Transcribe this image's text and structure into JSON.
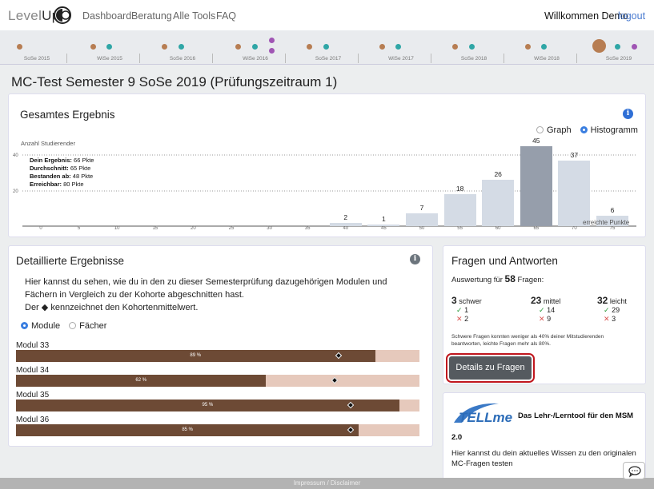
{
  "navbar": {
    "brand_light": "Level",
    "brand_dark": "Up",
    "links": [
      "Dashboard",
      "Beratung",
      "Alle Tools",
      "FAQ"
    ],
    "welcome": "Willkommen Demo",
    "logout": "logout"
  },
  "timeline": {
    "semesters": [
      "SoSe 2015",
      "WiSe 2015",
      "SoSe 2016",
      "WiSe 2016",
      "SoSe 2017",
      "WiSe 2017",
      "SoSe 2018",
      "WiSe 2018",
      "SoSe 2019"
    ]
  },
  "page_title": "MC-Test Semester 9 SoSe 2019 (Prüfungszeitraum 1)",
  "result_card": {
    "title": "Gesamtes Ergebnis",
    "view_graph": "Graph",
    "view_histogram": "Histogramm",
    "y_axis_label": "Anzahl Studierender",
    "x_axis_label": "erreichte Punkte",
    "stats": [
      {
        "label": "Dein Ergebnis:",
        "value": "66 Pkte"
      },
      {
        "label": "Durchschnitt:",
        "value": "65 Pkte"
      },
      {
        "label": "Bestanden ab:",
        "value": "48 Pkte"
      },
      {
        "label": "Erreichbar:",
        "value": "80 Pkte"
      }
    ]
  },
  "chart_data": {
    "type": "bar",
    "title": "Gesamtes Ergebnis",
    "xlabel": "erreichte Punkte",
    "ylabel": "Anzahl Studierender",
    "categories": [
      "0",
      "5",
      "10",
      "15",
      "20",
      "25",
      "30",
      "35",
      "40",
      "45",
      "50",
      "55",
      "60",
      "65",
      "70",
      "75"
    ],
    "values": [
      0,
      0,
      0,
      0,
      0,
      0,
      0,
      0,
      2,
      1,
      7,
      18,
      26,
      45,
      37,
      6
    ],
    "highlighted_category": "65",
    "y_ticks": [
      20,
      40
    ],
    "ylim": [
      0,
      48
    ]
  },
  "details_card": {
    "title": "Detaillierte Ergebnisse",
    "description_1": "Hier kannst du sehen, wie du in den zu dieser Semesterprüfung dazugehörigen Modulen und",
    "description_2": "Fächern in Vergleich zu der Kohorte abgeschnitten hast.",
    "description_3a": "Der",
    "description_3b": "kennzeichnet den Kohortenmittelwert.",
    "option_modules": "Module",
    "option_subjects": "Fächer",
    "modules": [
      {
        "name": "Modul 33",
        "pct_label": "89 %",
        "value": 89,
        "cohort": 80
      },
      {
        "name": "Modul 34",
        "pct_label": "62 %",
        "value": 62,
        "cohort": 79
      },
      {
        "name": "Modul 35",
        "pct_label": "95 %",
        "value": 95,
        "cohort": 83
      },
      {
        "name": "Modul 36",
        "pct_label": "85 %",
        "value": 85,
        "cohort": 83
      }
    ]
  },
  "questions_card": {
    "title": "Fragen und Antworten",
    "subtitle_prefix": "Auswertung für",
    "total": "58",
    "subtitle_suffix": "Fragen:",
    "columns": [
      {
        "count": "3",
        "label": "schwer",
        "right": "1",
        "wrong": "2"
      },
      {
        "count": "23",
        "label": "mittel",
        "right": "14",
        "wrong": "9"
      },
      {
        "count": "32",
        "label": "leicht",
        "right": "29",
        "wrong": "3"
      }
    ],
    "note_1": "Schwere Fragen konnten weniger als 40% deiner Mitstudierenden",
    "note_2": "beantworten, leichte Fragen mehr als 80%.",
    "button": "Details zu Fragen"
  },
  "tellme_card": {
    "logo_text": "TELLme",
    "tagline": "Das Lehr-/Lerntool für den MSM",
    "version": "2.0",
    "text_1": "Hier kannst du dein aktuelles Wissen zu den originalen",
    "text_2": "MC-Fragen testen"
  },
  "footer": {
    "text": "Impressum / Disclaimer"
  }
}
